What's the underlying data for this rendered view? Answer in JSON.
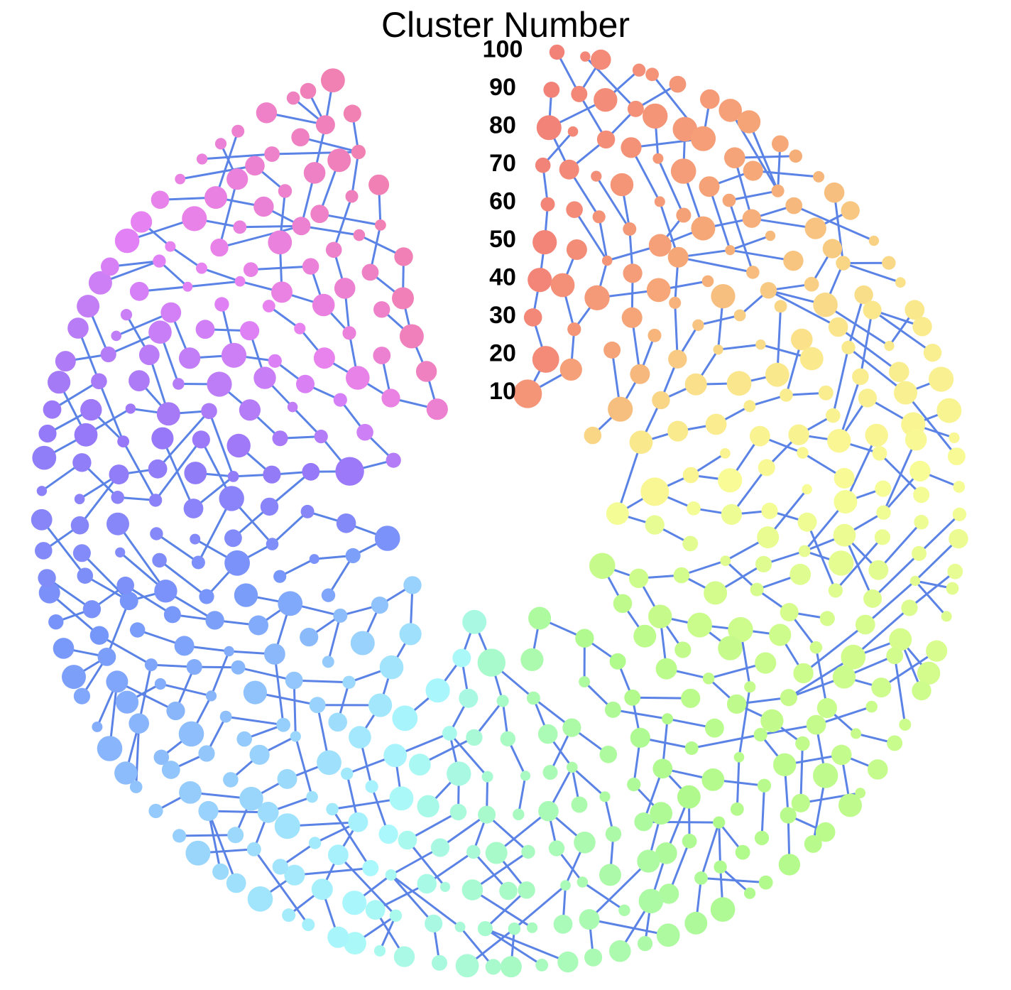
{
  "chart_data": {
    "type": "radial-clustering-tree",
    "title": "Cluster Number",
    "levels": [
      10,
      20,
      30,
      40,
      50,
      60,
      70,
      80,
      90,
      100
    ],
    "level_labels": [
      "10",
      "20",
      "30",
      "40",
      "50",
      "60",
      "70",
      "80",
      "90",
      "100"
    ],
    "leaf_clusters": 100,
    "edge_color": "#5b83e6",
    "node_color_scheme": "rainbow by leaf cluster: red/salmon at top, orange, yellow, green, cyan, blue, purple, pink"
  }
}
